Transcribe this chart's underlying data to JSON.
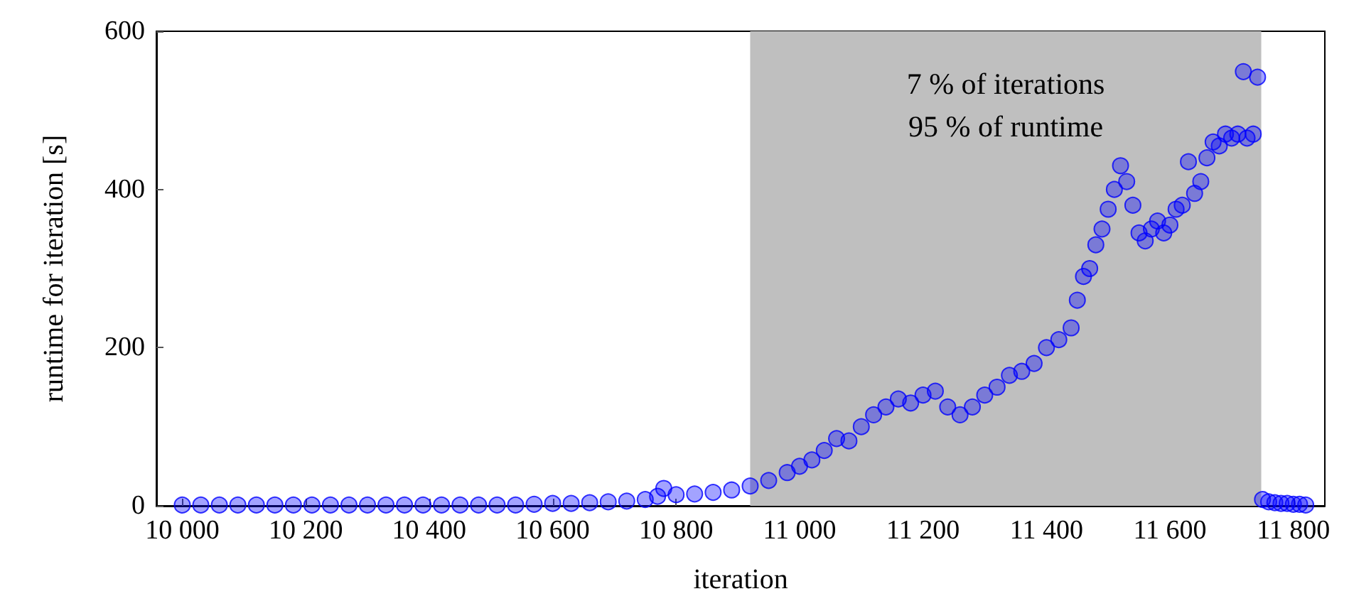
{
  "chart_data": {
    "type": "scatter",
    "xlabel": "iteration",
    "ylabel": "runtime for iteration [s]",
    "xlim": [
      9958,
      11851
    ],
    "ylim": [
      0,
      600
    ],
    "xticks": [
      {
        "value": 10000,
        "label": "10 000"
      },
      {
        "value": 10200,
        "label": "10 200"
      },
      {
        "value": 10400,
        "label": "10 400"
      },
      {
        "value": 10600,
        "label": "10 600"
      },
      {
        "value": 10800,
        "label": "10 800"
      },
      {
        "value": 11000,
        "label": "11 000"
      },
      {
        "value": 11200,
        "label": "11 200"
      },
      {
        "value": 11400,
        "label": "11 400"
      },
      {
        "value": 11600,
        "label": "11 600"
      },
      {
        "value": 11800,
        "label": "11 800"
      }
    ],
    "yticks": [
      0,
      200,
      400,
      600
    ],
    "grid": false,
    "marker": "circle",
    "bands": [
      {
        "axis": "x",
        "from": 10920,
        "to": 11748,
        "color": "#bfbfbf"
      }
    ],
    "annotations": [
      "7 % of iterations",
      "95 % of runtime"
    ],
    "series": [
      {
        "color": "#0000ff",
        "x": [
          10000,
          10030,
          10060,
          10090,
          10120,
          10150,
          10180,
          10210,
          10240,
          10270,
          10300,
          10330,
          10360,
          10390,
          10420,
          10450,
          10480,
          10510,
          10540,
          10570,
          10600,
          10630,
          10660,
          10690,
          10720,
          10750,
          10770,
          10780,
          10800,
          10830,
          10860,
          10890,
          10920,
          10950,
          10980,
          11000,
          11020,
          11040,
          11060,
          11080,
          11100,
          11120,
          11140,
          11160,
          11180,
          11200,
          11220,
          11240,
          11260,
          11280,
          11300,
          11320,
          11340,
          11360,
          11380,
          11400,
          11420,
          11440,
          11450,
          11460,
          11470,
          11480,
          11490,
          11500,
          11510,
          11520,
          11530,
          11540,
          11550,
          11560,
          11570,
          11580,
          11590,
          11600,
          11610,
          11620,
          11630,
          11640,
          11650,
          11660,
          11670,
          11680,
          11690,
          11700,
          11710,
          11719,
          11725,
          11735,
          11742,
          11750,
          11760,
          11770,
          11780,
          11790,
          11800,
          11810,
          11820
        ],
        "values": [
          1,
          1,
          1,
          1,
          1,
          1,
          1,
          1,
          1,
          1,
          1,
          1,
          1,
          1,
          1,
          1,
          1,
          1,
          1,
          2,
          3,
          3,
          4,
          5,
          6,
          8,
          12,
          22,
          14,
          15,
          17,
          20,
          25,
          32,
          42,
          50,
          58,
          70,
          85,
          82,
          100,
          115,
          125,
          135,
          130,
          140,
          145,
          125,
          115,
          125,
          140,
          150,
          165,
          170,
          180,
          200,
          210,
          225,
          260,
          290,
          300,
          330,
          350,
          375,
          400,
          430,
          410,
          380,
          345,
          335,
          350,
          360,
          345,
          355,
          375,
          380,
          435,
          395,
          410,
          440,
          460,
          455,
          470,
          465,
          470,
          549,
          465,
          470,
          542,
          8,
          5,
          4,
          3,
          3,
          2,
          2,
          1
        ]
      }
    ]
  }
}
